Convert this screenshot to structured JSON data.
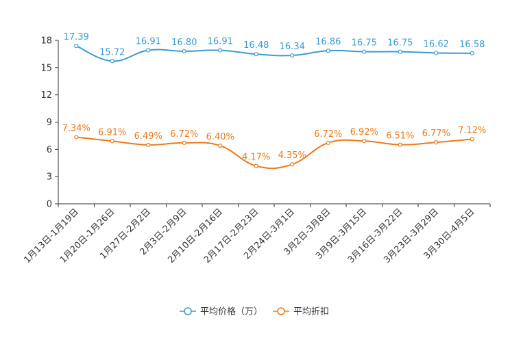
{
  "chart_data": {
    "type": "line",
    "categories": [
      "1月13日-1月19日",
      "1月20日-1月26日",
      "1月27日-2月2日",
      "2月3日-2月9日",
      "2月10日-2月16日",
      "2月17日-2月23日",
      "2月24日-3月1日",
      "3月2日-3月8日",
      "3月9日-3月15日",
      "3月16日-3月22日",
      "3月23日-3月29日",
      "3月30日-4月5日"
    ],
    "series": [
      {
        "name": "平均价格（万）",
        "values": [
          17.39,
          15.72,
          16.91,
          16.8,
          16.91,
          16.48,
          16.34,
          16.86,
          16.75,
          16.75,
          16.62,
          16.58
        ],
        "labels": [
          "17.39",
          "15.72",
          "16.91",
          "16.80",
          "16.91",
          "16.48",
          "16.34",
          "16.86",
          "16.75",
          "16.75",
          "16.62",
          "16.58"
        ],
        "color": "#3a9bd0"
      },
      {
        "name": "平均折扣",
        "values": [
          7.34,
          6.91,
          6.49,
          6.72,
          6.4,
          4.17,
          4.35,
          6.72,
          6.92,
          6.51,
          6.77,
          7.12
        ],
        "labels": [
          "7.34%",
          "6.91%",
          "6.49%",
          "6.72%",
          "6.40%",
          "4.17%",
          "4.35%",
          "6.72%",
          "6.92%",
          "6.51%",
          "6.77%",
          "7.12%"
        ],
        "color": "#f07818"
      }
    ],
    "yticks": [
      "0",
      "3",
      "6",
      "9",
      "12",
      "15",
      "18"
    ],
    "ylim": [
      0,
      18
    ],
    "title": "",
    "xlabel": "",
    "ylabel": "",
    "legend": "bottom-center",
    "grid": false
  }
}
